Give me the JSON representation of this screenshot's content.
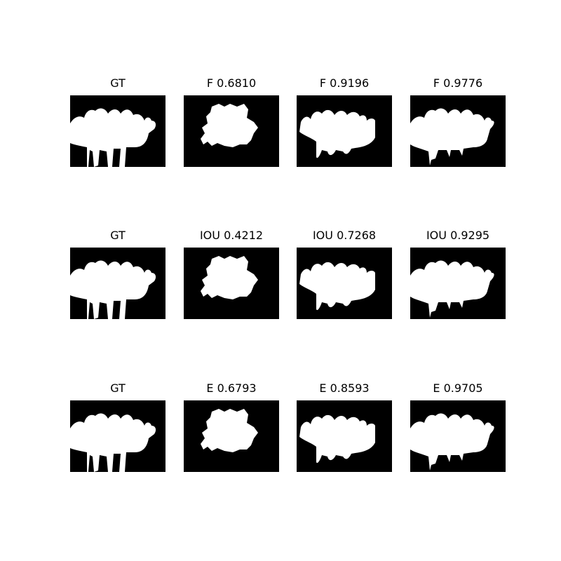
{
  "figure": {
    "rows": [
      {
        "metric": "F",
        "panels": [
          {
            "title": "GT",
            "variant": "gt"
          },
          {
            "title": "F 0.6810",
            "variant": "blob"
          },
          {
            "title": "F 0.9196",
            "variant": "mid"
          },
          {
            "title": "F 0.9776",
            "variant": "good"
          }
        ]
      },
      {
        "metric": "IOU",
        "panels": [
          {
            "title": "GT",
            "variant": "gt"
          },
          {
            "title": "IOU 0.4212",
            "variant": "blob"
          },
          {
            "title": "IOU 0.7268",
            "variant": "mid"
          },
          {
            "title": "IOU 0.9295",
            "variant": "good"
          }
        ]
      },
      {
        "metric": "E",
        "panels": [
          {
            "title": "GT",
            "variant": "gt"
          },
          {
            "title": "E 0.6793",
            "variant": "blob"
          },
          {
            "title": "E 0.8593",
            "variant": "mid"
          },
          {
            "title": "E 0.9705",
            "variant": "good"
          }
        ]
      }
    ],
    "colors": {
      "background": "#000000",
      "foreground": "#ffffff"
    }
  }
}
